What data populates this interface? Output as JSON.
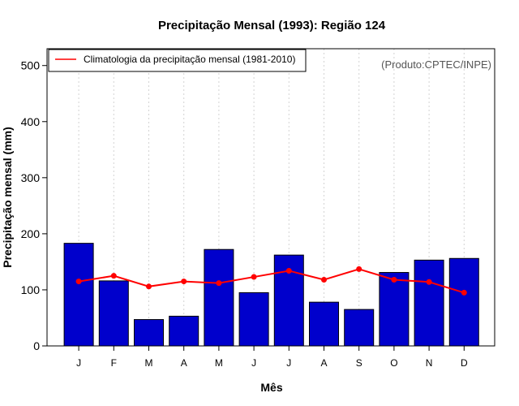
{
  "chart_data": {
    "type": "bar",
    "title": "Precipitação Mensal (1993): Região 124",
    "xlabel": "Mês",
    "ylabel": "Precipitação mensal (mm)",
    "ylim": [
      0,
      530
    ],
    "yticks": [
      0,
      100,
      200,
      300,
      400,
      500
    ],
    "categories": [
      "J",
      "F",
      "M",
      "A",
      "M",
      "J",
      "J",
      "A",
      "S",
      "O",
      "N",
      "D"
    ],
    "series": [
      {
        "name": "Precipitação mensal (1993)",
        "kind": "bar",
        "color": "#0000cc",
        "values": [
          183,
          116,
          47,
          53,
          172,
          95,
          162,
          78,
          65,
          131,
          153,
          156
        ]
      },
      {
        "name": "Climatologia da precipitação mensal (1981-2010)",
        "kind": "line",
        "color": "#ff0000",
        "values": [
          115,
          125,
          106,
          115,
          112,
          123,
          134,
          118,
          137,
          118,
          114,
          95
        ]
      }
    ],
    "legend": {
      "position": "top-left",
      "entries": [
        "Climatologia da precipitação mensal (1981-2010)"
      ]
    },
    "annotation": "(Produto:CPTEC/INPE)",
    "grid": "vertical-dashed"
  }
}
